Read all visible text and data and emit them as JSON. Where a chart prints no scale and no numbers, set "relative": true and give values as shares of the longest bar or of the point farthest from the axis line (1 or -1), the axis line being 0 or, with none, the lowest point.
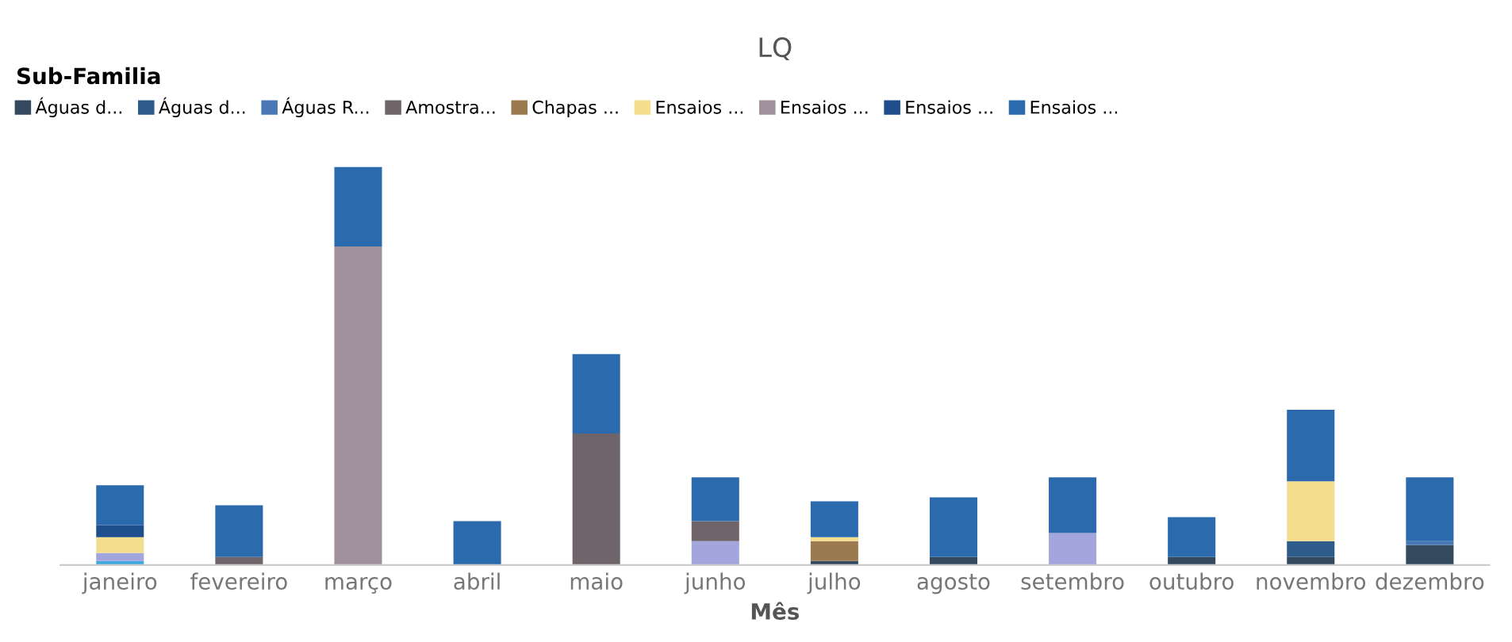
{
  "chart_data": {
    "type": "bar",
    "title": "LQ",
    "xlabel": "Mês",
    "legend_title": "Sub-Familia",
    "legend": "top left",
    "stacked": true,
    "relative": true,
    "grid": false,
    "categories": [
      "janeiro",
      "fevereiro",
      "março",
      "abril",
      "maio",
      "junho",
      "julho",
      "agosto",
      "setembro",
      "outubro",
      "novembro",
      "dezembro"
    ],
    "series": [
      {
        "color": "#41a7e0",
        "values": [
          0.01,
          null,
          null,
          null,
          null,
          null,
          null,
          null,
          null,
          null,
          null,
          null
        ]
      },
      {
        "name": "Águas d...",
        "color": "#34495e",
        "values": [
          null,
          null,
          null,
          null,
          null,
          null,
          0.01,
          0.02,
          null,
          0.02,
          0.02,
          0.05
        ]
      },
      {
        "name": "Águas d...",
        "color": "#2e5c8a",
        "values": [
          null,
          null,
          null,
          null,
          null,
          null,
          null,
          null,
          null,
          null,
          0.04,
          null
        ]
      },
      {
        "name": "Águas R...",
        "color": "#4a78b5",
        "values": [
          null,
          null,
          null,
          null,
          null,
          null,
          null,
          null,
          null,
          null,
          null,
          0.01
        ]
      },
      {
        "color": "#a3a6dc",
        "values": [
          0.02,
          null,
          null,
          null,
          null,
          0.06,
          null,
          null,
          0.08,
          null,
          null,
          null
        ]
      },
      {
        "name": "Amostra...",
        "color": "#6f6469",
        "values": [
          null,
          0.02,
          null,
          null,
          0.33,
          0.05,
          null,
          null,
          null,
          null,
          null,
          null
        ]
      },
      {
        "name": "Chapas ...",
        "color": "#9c7a50",
        "values": [
          null,
          null,
          null,
          null,
          null,
          null,
          0.05,
          null,
          null,
          null,
          null,
          null
        ]
      },
      {
        "name": "Ensaios ...",
        "color": "#f3dd8f",
        "values": [
          0.04,
          null,
          null,
          null,
          null,
          null,
          0.01,
          null,
          null,
          null,
          0.15,
          null
        ]
      },
      {
        "name": "Ensaios ...",
        "color": "#a0909c",
        "values": [
          null,
          null,
          0.8,
          null,
          null,
          null,
          null,
          null,
          null,
          null,
          null,
          null
        ]
      },
      {
        "name": "Ensaios ...",
        "color": "#1f4e8c",
        "values": [
          0.03,
          null,
          null,
          null,
          null,
          null,
          null,
          null,
          null,
          null,
          null,
          null
        ]
      },
      {
        "name": "Ensaios ...",
        "color": "#2a6aad",
        "values": [
          0.1,
          0.13,
          0.2,
          0.11,
          0.2,
          0.11,
          0.09,
          0.15,
          0.14,
          0.1,
          0.18,
          0.16
        ]
      }
    ]
  }
}
